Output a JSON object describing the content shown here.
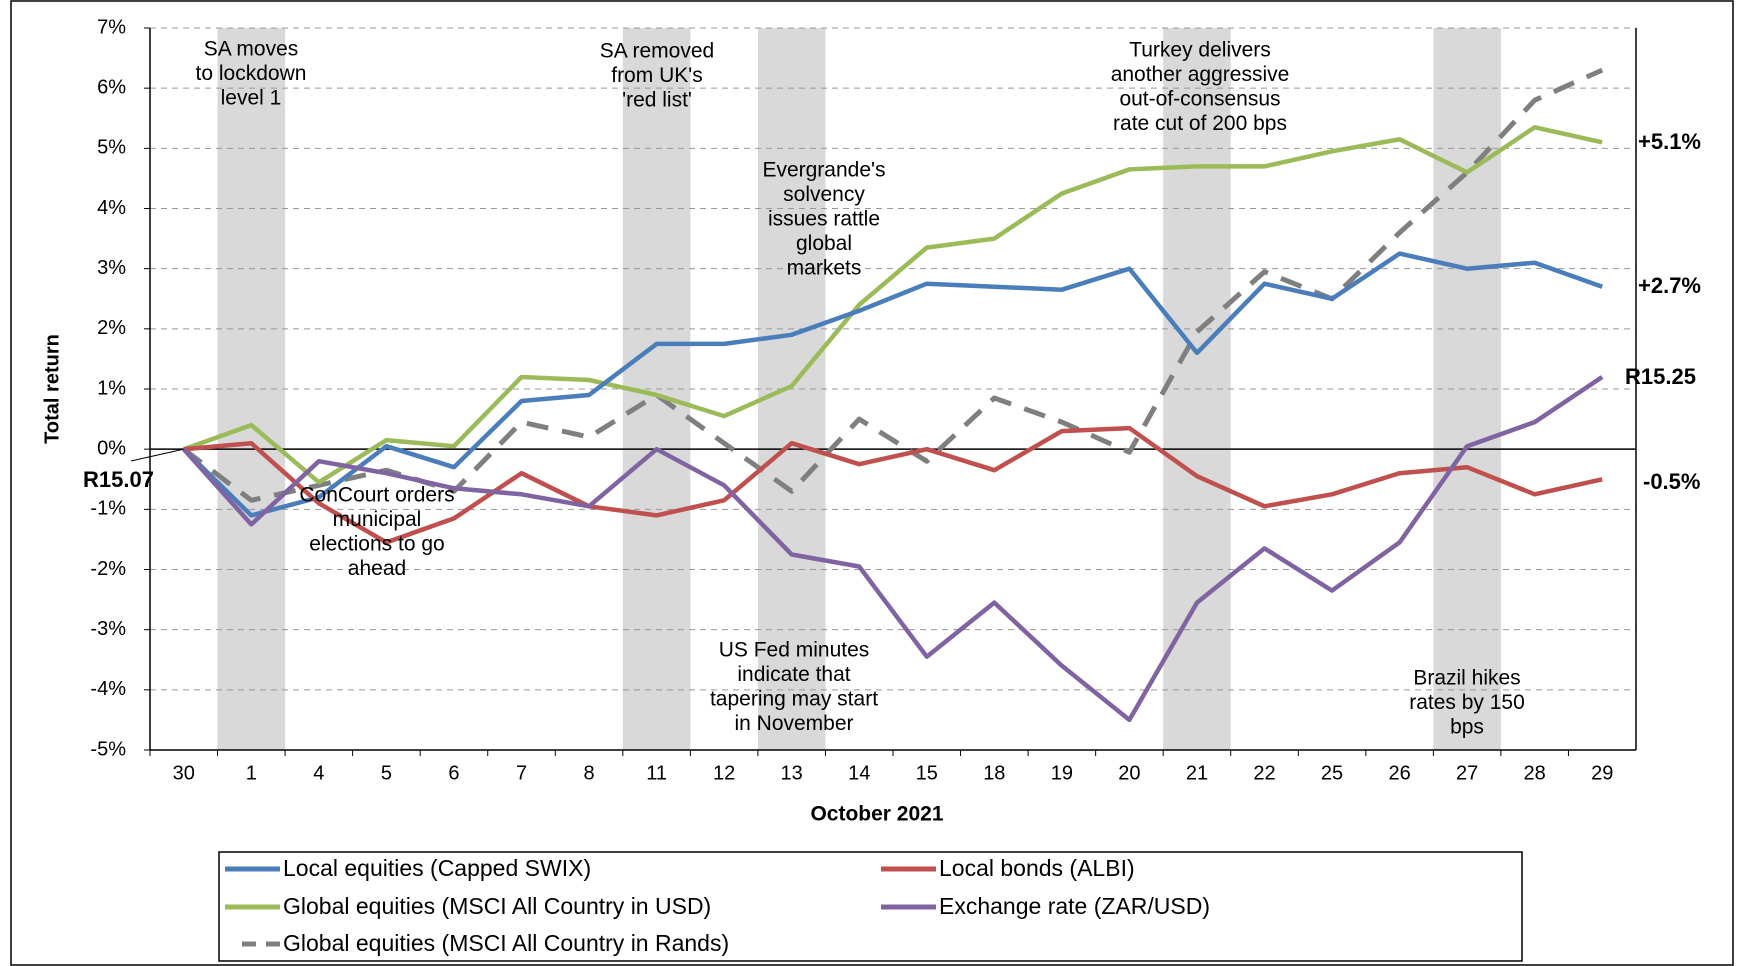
{
  "chart_data": {
    "type": "line",
    "y_label": "Total return",
    "x_label": "October 2021",
    "categories": [
      "30",
      "1",
      "4",
      "5",
      "6",
      "7",
      "8",
      "11",
      "12",
      "13",
      "14",
      "15",
      "18",
      "19",
      "20",
      "21",
      "22",
      "25",
      "26",
      "27",
      "28",
      "29"
    ],
    "ylim": [
      -5,
      7
    ],
    "yticks": [
      {
        "value": -5,
        "label": "-5%"
      },
      {
        "value": -4,
        "label": "-4%"
      },
      {
        "value": -3,
        "label": "-3%"
      },
      {
        "value": -2,
        "label": "-2%"
      },
      {
        "value": -1,
        "label": "-1%"
      },
      {
        "value": 0,
        "label": "0%"
      },
      {
        "value": 1,
        "label": "1%"
      },
      {
        "value": 2,
        "label": "2%"
      },
      {
        "value": 3,
        "label": "3%"
      },
      {
        "value": 4,
        "label": "4%"
      },
      {
        "value": 5,
        "label": "5%"
      },
      {
        "value": 6,
        "label": "6%"
      },
      {
        "value": 7,
        "label": "7%"
      }
    ],
    "grid": true,
    "series": [
      {
        "name": "Local equities (Capped SWIX)",
        "color": "#4a7ebb",
        "dashed": false,
        "end_label": "+2.7%",
        "values": [
          0,
          -1.1,
          -0.8,
          0.05,
          -0.3,
          0.8,
          0.9,
          1.75,
          1.75,
          1.9,
          2.3,
          2.75,
          2.7,
          2.65,
          3.0,
          1.6,
          2.75,
          2.5,
          3.25,
          3.0,
          3.1,
          2.7
        ]
      },
      {
        "name": "Local bonds (ALBI)",
        "color": "#c0504d",
        "dashed": false,
        "end_label": "-0.5%",
        "values": [
          0,
          0.1,
          -0.9,
          -1.55,
          -1.15,
          -0.4,
          -0.95,
          -1.1,
          -0.85,
          0.1,
          -0.25,
          0.0,
          -0.35,
          0.3,
          0.35,
          -0.45,
          -0.95,
          -0.75,
          -0.4,
          -0.3,
          -0.75,
          -0.5
        ]
      },
      {
        "name": "Global equities (MSCI All Country in USD)",
        "color": "#9bbb59",
        "dashed": false,
        "end_label": "+5.1%",
        "values": [
          0,
          0.4,
          -0.55,
          0.15,
          0.05,
          1.2,
          1.15,
          0.9,
          0.55,
          1.05,
          2.4,
          3.35,
          3.5,
          4.25,
          4.65,
          4.7,
          4.7,
          4.95,
          5.15,
          4.6,
          5.35,
          5.1
        ]
      },
      {
        "name": "Exchange rate (ZAR/USD)",
        "color": "#8064a2",
        "dashed": false,
        "start_label": "R15.07",
        "end_label": "R15.25",
        "values": [
          0,
          -1.25,
          -0.2,
          -0.4,
          -0.65,
          -0.75,
          -0.95,
          0.0,
          -0.6,
          -1.75,
          -1.95,
          -3.45,
          -2.55,
          -3.6,
          -4.5,
          -2.55,
          -1.65,
          -2.35,
          -1.55,
          0.05,
          0.45,
          1.2
        ]
      },
      {
        "name": "Global equities (MSCI All Country in Rands)",
        "color": "#7f7f7f",
        "dashed": true,
        "values": [
          0,
          -0.85,
          -0.6,
          -0.35,
          -0.7,
          0.45,
          0.2,
          0.9,
          0.1,
          -0.7,
          0.5,
          -0.2,
          0.85,
          0.45,
          -0.05,
          1.95,
          2.95,
          2.5,
          3.6,
          4.6,
          5.8,
          6.3
        ]
      }
    ],
    "annotations": [
      [
        "SA moves",
        "to lockdown",
        "level 1"
      ],
      [
        "SA removed",
        "from UK's",
        "'red list'"
      ],
      [
        "Evergrande's",
        "solvency",
        "issues rattle",
        "global",
        "markets"
      ],
      [
        "Turkey delivers",
        "another aggressive",
        "out-of-consensus",
        "rate cut of 200 bps"
      ],
      [
        "ConCourt orders",
        "municipal",
        "elections to go",
        "ahead"
      ],
      [
        "US Fed minutes",
        "indicate that",
        "tapering may start",
        "in November"
      ],
      [
        "Brazil hikes",
        "rates by 150",
        "bps"
      ]
    ]
  }
}
